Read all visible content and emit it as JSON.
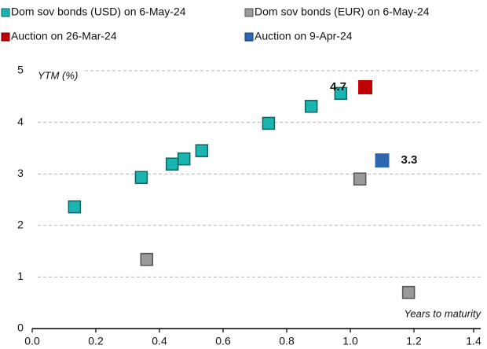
{
  "chart_data": {
    "type": "scatter",
    "y_label": "YTM (%)",
    "x_label": "Years to maturity",
    "xlim": [
      0,
      1.4
    ],
    "xticks": [
      {
        "value": 0,
        "label": "0.0"
      },
      0.2,
      0.4,
      0.6,
      0.8,
      {
        "value": 1,
        "label": "1.0"
      },
      1.2,
      1.4
    ],
    "ylim": [
      0,
      5
    ],
    "yticks": [
      0,
      1,
      2,
      3,
      4,
      5
    ],
    "grid": true,
    "legend": "top",
    "series": [
      {
        "name": "Dom sov bonds (USD) on 6-May-24",
        "color": "#1ab5b0",
        "x": [
          0.133,
          0.343,
          0.44,
          0.477,
          0.533,
          0.743,
          0.877,
          0.97
        ],
        "values": [
          2.36,
          2.93,
          3.19,
          3.29,
          3.45,
          3.98,
          4.31,
          4.56
        ]
      },
      {
        "name": "Dom sov bonds (EUR) on 6-May-24",
        "color": "#9a9a9a",
        "x": [
          0.36,
          1.03,
          1.183
        ],
        "values": [
          1.34,
          2.9,
          0.7
        ]
      },
      {
        "name": "Auction on 26-Mar-24",
        "color": "#c00000",
        "x": [
          1.047
        ],
        "values": [
          4.68
        ],
        "value_labels": [
          "4.7"
        ]
      },
      {
        "name": "Auction on 9-Apr-24",
        "color": "#2e67b1",
        "x": [
          1.1
        ],
        "values": [
          3.26
        ],
        "value_labels": [
          "3.3"
        ]
      }
    ]
  }
}
